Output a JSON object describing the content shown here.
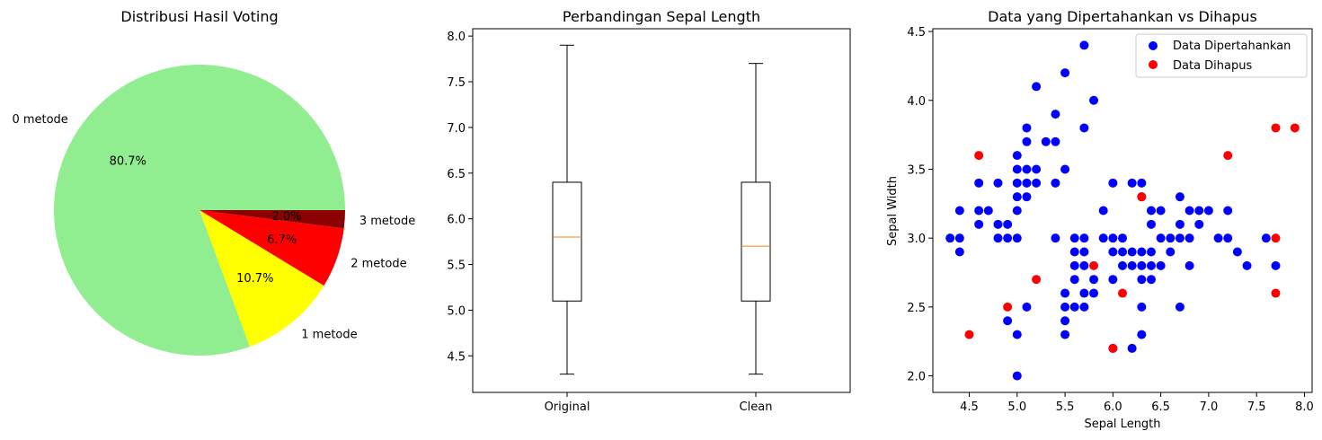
{
  "chart_data": [
    {
      "type": "pie",
      "title": "Distribusi Hasil Voting",
      "slices": [
        {
          "label": "0 metode",
          "value": 80.7,
          "pct_label": "80.7%",
          "color": "#90ee90"
        },
        {
          "label": "1 metode",
          "value": 10.7,
          "pct_label": "10.7%",
          "color": "#ffff00"
        },
        {
          "label": "2 metode",
          "value": 6.7,
          "pct_label": "6.7%",
          "color": "#ff0000"
        },
        {
          "label": "3 metode",
          "value": 2.0,
          "pct_label": "2.0%",
          "color": "#8b0000"
        }
      ]
    },
    {
      "type": "box",
      "title": "Perbandingan Sepal Length",
      "ylim": [
        4.1,
        8.08
      ],
      "yticks": [
        4.5,
        5.0,
        5.5,
        6.0,
        6.5,
        7.0,
        7.5,
        8.0
      ],
      "ytick_labels": [
        "4.5",
        "5.0",
        "5.5",
        "6.0",
        "6.5",
        "7.0",
        "7.5",
        "8.0"
      ],
      "median_color": "#ff7f0e",
      "boxes": [
        {
          "label": "Original",
          "min": 4.3,
          "q1": 5.1,
          "median": 5.8,
          "q3": 6.4,
          "max": 7.9
        },
        {
          "label": "Clean",
          "min": 4.3,
          "q1": 5.1,
          "median": 5.7,
          "q3": 6.4,
          "max": 7.7
        }
      ]
    },
    {
      "type": "scatter",
      "title": "Data yang Dipertahankan vs Dihapus",
      "xlabel": "Sepal Length",
      "ylabel": "Sepal Width",
      "xlim": [
        4.12,
        8.08
      ],
      "ylim": [
        1.88,
        4.52
      ],
      "xticks": [
        4.5,
        5.0,
        5.5,
        6.0,
        6.5,
        7.0,
        7.5,
        8.0
      ],
      "xtick_labels": [
        "4.5",
        "5.0",
        "5.5",
        "6.0",
        "6.5",
        "7.0",
        "7.5",
        "8.0"
      ],
      "yticks": [
        2.0,
        2.5,
        3.0,
        3.5,
        4.0,
        4.5
      ],
      "ytick_labels": [
        "2.0",
        "2.5",
        "3.0",
        "3.5",
        "4.0",
        "4.5"
      ],
      "legend_position": "top-right",
      "series": [
        {
          "name": "Data Dipertahankan",
          "color": "#0000ff",
          "points": [
            [
              4.3,
              3.0
            ],
            [
              4.4,
              2.9
            ],
            [
              4.4,
              3.0
            ],
            [
              4.4,
              3.2
            ],
            [
              4.6,
              3.1
            ],
            [
              4.6,
              3.2
            ],
            [
              4.6,
              3.4
            ],
            [
              4.7,
              3.2
            ],
            [
              4.8,
              3.0
            ],
            [
              4.8,
              3.1
            ],
            [
              4.8,
              3.4
            ],
            [
              4.9,
              2.4
            ],
            [
              4.9,
              3.0
            ],
            [
              4.9,
              3.1
            ],
            [
              5.0,
              2.0
            ],
            [
              5.0,
              2.3
            ],
            [
              5.0,
              3.0
            ],
            [
              5.0,
              3.2
            ],
            [
              5.0,
              3.3
            ],
            [
              5.0,
              3.4
            ],
            [
              5.0,
              3.5
            ],
            [
              5.0,
              3.6
            ],
            [
              5.1,
              2.5
            ],
            [
              5.1,
              3.3
            ],
            [
              5.1,
              3.4
            ],
            [
              5.1,
              3.5
            ],
            [
              5.1,
              3.7
            ],
            [
              5.1,
              3.8
            ],
            [
              5.2,
              3.4
            ],
            [
              5.2,
              3.5
            ],
            [
              5.2,
              4.1
            ],
            [
              5.3,
              3.7
            ],
            [
              5.4,
              3.0
            ],
            [
              5.4,
              3.4
            ],
            [
              5.4,
              3.7
            ],
            [
              5.4,
              3.9
            ],
            [
              5.5,
              2.3
            ],
            [
              5.5,
              2.4
            ],
            [
              5.5,
              2.5
            ],
            [
              5.5,
              2.6
            ],
            [
              5.5,
              3.5
            ],
            [
              5.5,
              4.2
            ],
            [
              5.6,
              2.5
            ],
            [
              5.6,
              2.7
            ],
            [
              5.6,
              2.8
            ],
            [
              5.6,
              2.9
            ],
            [
              5.6,
              3.0
            ],
            [
              5.7,
              2.5
            ],
            [
              5.7,
              2.6
            ],
            [
              5.7,
              2.8
            ],
            [
              5.7,
              2.9
            ],
            [
              5.7,
              3.0
            ],
            [
              5.7,
              3.8
            ],
            [
              5.7,
              4.4
            ],
            [
              5.8,
              2.6
            ],
            [
              5.8,
              2.7
            ],
            [
              5.8,
              4.0
            ],
            [
              5.9,
              3.0
            ],
            [
              5.9,
              3.2
            ],
            [
              6.0,
              2.2
            ],
            [
              6.0,
              2.7
            ],
            [
              6.0,
              2.9
            ],
            [
              6.0,
              3.0
            ],
            [
              6.0,
              3.4
            ],
            [
              6.1,
              2.8
            ],
            [
              6.1,
              2.9
            ],
            [
              6.1,
              3.0
            ],
            [
              6.2,
              2.2
            ],
            [
              6.2,
              2.8
            ],
            [
              6.2,
              2.9
            ],
            [
              6.2,
              3.4
            ],
            [
              6.3,
              2.3
            ],
            [
              6.3,
              2.5
            ],
            [
              6.3,
              2.7
            ],
            [
              6.3,
              2.8
            ],
            [
              6.3,
              2.9
            ],
            [
              6.3,
              3.3
            ],
            [
              6.3,
              3.4
            ],
            [
              6.4,
              2.7
            ],
            [
              6.4,
              2.8
            ],
            [
              6.4,
              2.9
            ],
            [
              6.4,
              3.1
            ],
            [
              6.4,
              3.2
            ],
            [
              6.5,
              2.8
            ],
            [
              6.5,
              3.0
            ],
            [
              6.5,
              3.2
            ],
            [
              6.6,
              2.9
            ],
            [
              6.6,
              3.0
            ],
            [
              6.7,
              2.5
            ],
            [
              6.7,
              3.0
            ],
            [
              6.7,
              3.1
            ],
            [
              6.7,
              3.3
            ],
            [
              6.8,
              2.8
            ],
            [
              6.8,
              3.0
            ],
            [
              6.8,
              3.2
            ],
            [
              6.9,
              3.1
            ],
            [
              6.9,
              3.2
            ],
            [
              7.0,
              3.2
            ],
            [
              7.1,
              3.0
            ],
            [
              7.2,
              3.0
            ],
            [
              7.2,
              3.2
            ],
            [
              7.3,
              2.9
            ],
            [
              7.4,
              2.8
            ],
            [
              7.6,
              3.0
            ],
            [
              7.7,
              2.8
            ]
          ]
        },
        {
          "name": "Data Dihapus",
          "color": "#ff0000",
          "points": [
            [
              4.5,
              2.3
            ],
            [
              4.6,
              3.6
            ],
            [
              4.9,
              2.5
            ],
            [
              5.2,
              2.7
            ],
            [
              5.8,
              2.8
            ],
            [
              6.0,
              2.2
            ],
            [
              6.1,
              2.6
            ],
            [
              6.3,
              3.3
            ],
            [
              7.2,
              3.6
            ],
            [
              7.7,
              2.6
            ],
            [
              7.7,
              3.0
            ],
            [
              7.7,
              3.8
            ],
            [
              7.9,
              3.8
            ]
          ]
        }
      ]
    }
  ]
}
